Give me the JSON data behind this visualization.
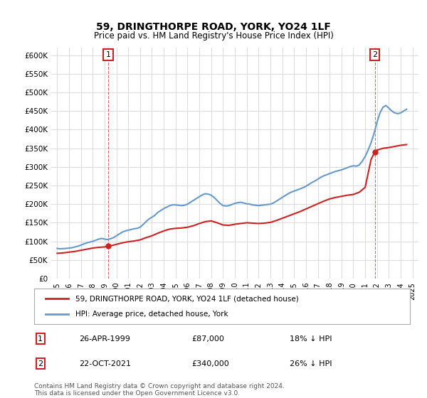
{
  "title": "59, DRINGTHORPE ROAD, YORK, YO24 1LF",
  "subtitle": "Price paid vs. HM Land Registry's House Price Index (HPI)",
  "footer": "Contains HM Land Registry data © Crown copyright and database right 2024.\nThis data is licensed under the Open Government Licence v3.0.",
  "legend_line1": "59, DRINGTHORPE ROAD, YORK, YO24 1LF (detached house)",
  "legend_line2": "HPI: Average price, detached house, York",
  "annotation1": {
    "label": "1",
    "date": "26-APR-1999",
    "price": "£87,000",
    "pct": "18% ↓ HPI"
  },
  "annotation2": {
    "label": "2",
    "date": "22-OCT-2021",
    "price": "£340,000",
    "pct": "26% ↓ HPI"
  },
  "sale1_x": 1999.32,
  "sale1_y": 87000,
  "sale2_x": 2021.81,
  "sale2_y": 340000,
  "ylim_min": 0,
  "ylim_max": 620000,
  "xlim_min": 1994.5,
  "xlim_max": 2025.5,
  "yticks": [
    0,
    50000,
    100000,
    150000,
    200000,
    250000,
    300000,
    350000,
    400000,
    450000,
    500000,
    550000,
    600000
  ],
  "ytick_labels": [
    "£0",
    "£50K",
    "£100K",
    "£150K",
    "£200K",
    "£250K",
    "£300K",
    "£350K",
    "£400K",
    "£450K",
    "£500K",
    "£550K",
    "£600K"
  ],
  "xticks": [
    1995,
    1996,
    1997,
    1998,
    1999,
    2000,
    2001,
    2002,
    2003,
    2004,
    2005,
    2006,
    2007,
    2008,
    2009,
    2010,
    2011,
    2012,
    2013,
    2014,
    2015,
    2016,
    2017,
    2018,
    2019,
    2020,
    2021,
    2022,
    2023,
    2024,
    2025
  ],
  "hpi_color": "#6699cc",
  "price_color": "#cc2222",
  "annotation_box_color": "#cc2222",
  "bg_color": "#ffffff",
  "grid_color": "#dddddd",
  "hpi_data": {
    "x": [
      1995.0,
      1995.25,
      1995.5,
      1995.75,
      1996.0,
      1996.25,
      1996.5,
      1996.75,
      1997.0,
      1997.25,
      1997.5,
      1997.75,
      1998.0,
      1998.25,
      1998.5,
      1998.75,
      1999.0,
      1999.25,
      1999.5,
      1999.75,
      2000.0,
      2000.25,
      2000.5,
      2000.75,
      2001.0,
      2001.25,
      2001.5,
      2001.75,
      2002.0,
      2002.25,
      2002.5,
      2002.75,
      2003.0,
      2003.25,
      2003.5,
      2003.75,
      2004.0,
      2004.25,
      2004.5,
      2004.75,
      2005.0,
      2005.25,
      2005.5,
      2005.75,
      2006.0,
      2006.25,
      2006.5,
      2006.75,
      2007.0,
      2007.25,
      2007.5,
      2007.75,
      2008.0,
      2008.25,
      2008.5,
      2008.75,
      2009.0,
      2009.25,
      2009.5,
      2009.75,
      2010.0,
      2010.25,
      2010.5,
      2010.75,
      2011.0,
      2011.25,
      2011.5,
      2011.75,
      2012.0,
      2012.25,
      2012.5,
      2012.75,
      2013.0,
      2013.25,
      2013.5,
      2013.75,
      2014.0,
      2014.25,
      2014.5,
      2014.75,
      2015.0,
      2015.25,
      2015.5,
      2015.75,
      2016.0,
      2016.25,
      2016.5,
      2016.75,
      2017.0,
      2017.25,
      2017.5,
      2017.75,
      2018.0,
      2018.25,
      2018.5,
      2018.75,
      2019.0,
      2019.25,
      2019.5,
      2019.75,
      2020.0,
      2020.25,
      2020.5,
      2020.75,
      2021.0,
      2021.25,
      2021.5,
      2021.75,
      2022.0,
      2022.25,
      2022.5,
      2022.75,
      2023.0,
      2023.25,
      2023.5,
      2023.75,
      2024.0,
      2024.25,
      2024.5
    ],
    "y": [
      81000,
      80000,
      80500,
      81000,
      82000,
      83000,
      85000,
      87000,
      90000,
      93000,
      96000,
      98000,
      100000,
      103000,
      106000,
      108000,
      106000,
      105000,
      107000,
      110000,
      115000,
      120000,
      125000,
      128000,
      130000,
      132000,
      134000,
      135000,
      138000,
      145000,
      153000,
      160000,
      165000,
      170000,
      178000,
      183000,
      188000,
      192000,
      196000,
      198000,
      198000,
      197000,
      196000,
      197000,
      200000,
      205000,
      210000,
      215000,
      220000,
      225000,
      228000,
      227000,
      224000,
      218000,
      210000,
      202000,
      196000,
      195000,
      196000,
      199000,
      202000,
      204000,
      205000,
      203000,
      201000,
      200000,
      198000,
      197000,
      196000,
      197000,
      198000,
      199000,
      200000,
      203000,
      208000,
      213000,
      218000,
      223000,
      228000,
      232000,
      235000,
      238000,
      241000,
      244000,
      248000,
      253000,
      258000,
      262000,
      267000,
      272000,
      276000,
      279000,
      282000,
      285000,
      288000,
      290000,
      292000,
      295000,
      298000,
      301000,
      303000,
      302000,
      305000,
      315000,
      328000,
      345000,
      365000,
      390000,
      420000,
      445000,
      460000,
      465000,
      458000,
      450000,
      445000,
      443000,
      445000,
      450000,
      455000
    ]
  },
  "price_data": {
    "x": [
      1995.0,
      1995.5,
      1996.0,
      1996.5,
      1997.0,
      1997.5,
      1998.0,
      1998.5,
      1999.0,
      1999.32,
      1999.5,
      2000.0,
      2000.5,
      2001.0,
      2001.5,
      2002.0,
      2002.5,
      2003.0,
      2003.5,
      2004.0,
      2004.5,
      2005.0,
      2005.5,
      2006.0,
      2006.5,
      2007.0,
      2007.5,
      2008.0,
      2008.5,
      2009.0,
      2009.5,
      2010.0,
      2010.5,
      2011.0,
      2011.5,
      2012.0,
      2012.5,
      2013.0,
      2013.5,
      2014.0,
      2014.5,
      2015.0,
      2015.5,
      2016.0,
      2016.5,
      2017.0,
      2017.5,
      2018.0,
      2018.5,
      2019.0,
      2019.5,
      2020.0,
      2020.5,
      2021.0,
      2021.5,
      2021.81,
      2022.0,
      2022.5,
      2023.0,
      2023.5,
      2024.0,
      2024.5
    ],
    "y": [
      68000,
      69000,
      71000,
      73000,
      76000,
      79000,
      82000,
      84000,
      85000,
      87000,
      88000,
      92000,
      96000,
      99000,
      101000,
      104000,
      110000,
      115000,
      122000,
      128000,
      133000,
      135000,
      136000,
      138000,
      142000,
      148000,
      153000,
      155000,
      150000,
      144000,
      143000,
      146000,
      148000,
      150000,
      149000,
      148000,
      149000,
      151000,
      156000,
      162000,
      168000,
      174000,
      180000,
      187000,
      194000,
      201000,
      208000,
      214000,
      218000,
      221000,
      224000,
      226000,
      232000,
      245000,
      320000,
      340000,
      345000,
      350000,
      352000,
      355000,
      358000,
      360000
    ]
  }
}
